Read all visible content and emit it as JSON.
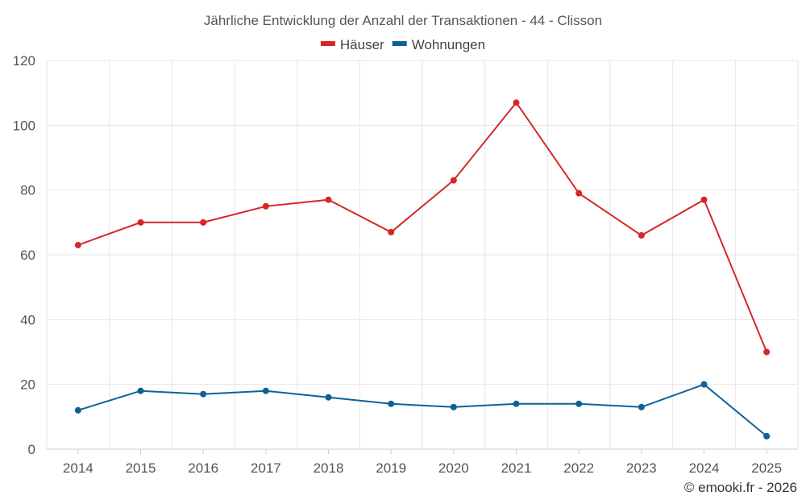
{
  "chart_data": {
    "type": "line",
    "title": "Jährliche Entwicklung der Anzahl der Transaktionen - 44 - Clisson",
    "categories": [
      "2014",
      "2015",
      "2016",
      "2017",
      "2018",
      "2019",
      "2020",
      "2021",
      "2022",
      "2023",
      "2024",
      "2025"
    ],
    "series": [
      {
        "name": "Häuser",
        "color": "#d62728",
        "values": [
          63,
          70,
          70,
          75,
          77,
          67,
          83,
          107,
          79,
          66,
          77,
          30
        ]
      },
      {
        "name": "Wohnungen",
        "color": "#0e6198",
        "values": [
          12,
          18,
          17,
          18,
          16,
          14,
          13,
          14,
          14,
          13,
          20,
          4
        ]
      }
    ],
    "xlabel": "",
    "ylabel": "",
    "ylim": [
      0,
      120
    ],
    "yticks": [
      0,
      20,
      40,
      60,
      80,
      100,
      120
    ],
    "grid": true,
    "legend": "top-center"
  },
  "credit": "© emooki.fr - 2026"
}
